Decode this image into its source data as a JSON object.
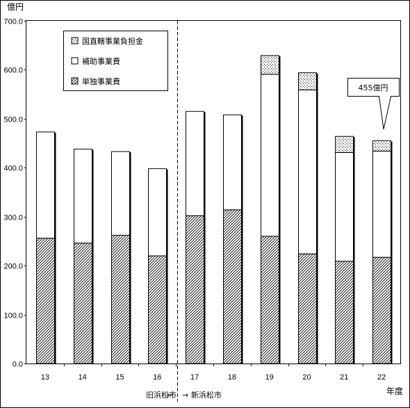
{
  "chart_data": {
    "type": "bar",
    "stacked": true,
    "unit_label": "億円",
    "xlabel": "年度",
    "categories": [
      "13",
      "14",
      "15",
      "16",
      "17",
      "18",
      "19",
      "20",
      "21",
      "22"
    ],
    "ylim": [
      0,
      700
    ],
    "yticks": [
      "0.0",
      "100.0",
      "200.0",
      "300.0",
      "400.0",
      "500.0",
      "600.0",
      "700.0"
    ],
    "series": [
      {
        "name": "単独事業費",
        "pattern": "diagonal-hatch",
        "values": [
          256,
          246,
          262,
          220,
          302,
          314,
          260,
          224,
          209,
          217
        ]
      },
      {
        "name": "補助事業費",
        "pattern": "white",
        "values": [
          217,
          192,
          171,
          178,
          213,
          194,
          331,
          335,
          222,
          217
        ]
      },
      {
        "name": "国直轄事業負担金",
        "pattern": "dotted",
        "values": [
          0,
          0,
          0,
          0,
          0,
          0,
          38,
          35,
          33,
          21
        ]
      }
    ],
    "legend_placement": "top-left",
    "annotation": {
      "text": "455億円",
      "category": "22",
      "value": 455
    },
    "divider": {
      "between": [
        "16",
        "17"
      ],
      "left_label": "旧浜松市",
      "right_label": "新浜松市",
      "arrow_left": "←",
      "arrow_right": "→"
    },
    "colors": {
      "bar_border": "#000000",
      "hatch": "#000000",
      "fill": "#ffffff"
    }
  }
}
